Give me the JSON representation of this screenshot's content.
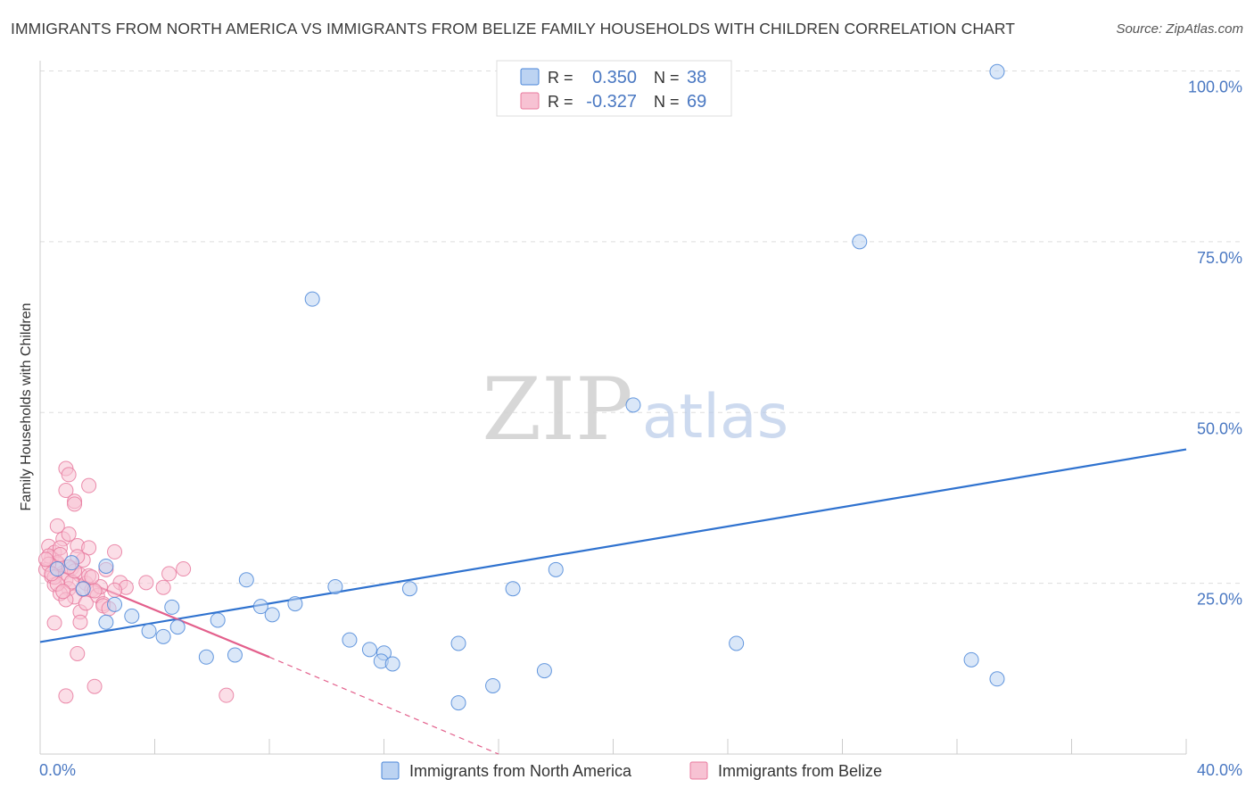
{
  "header": {
    "title": "IMMIGRANTS FROM NORTH AMERICA VS IMMIGRANTS FROM BELIZE FAMILY HOUSEHOLDS WITH CHILDREN CORRELATION CHART",
    "source": "Source: ZipAtlas.com"
  },
  "watermark": {
    "zip": "ZIP",
    "atlas": "atlas"
  },
  "colors": {
    "blue": "#4a86d8",
    "blue_fill": "#bcd3f2",
    "blue_line": "#2f72cf",
    "pink": "#e8799e",
    "pink_fill": "#f7c2d3",
    "pink_line": "#e3608c",
    "grid": "#dddddd",
    "axis_text": "#4a78c2",
    "text": "#333333"
  },
  "chart_data": {
    "type": "scatter",
    "ylabel": "Family Households with Children",
    "xlim": [
      0,
      40
    ],
    "ylim": [
      0,
      100
    ],
    "x_tick_labels": [
      "0.0%",
      "40.0%"
    ],
    "y_tick_labels": [
      {
        "value": 25,
        "label": "25.0%"
      },
      {
        "value": 50,
        "label": "50.0%"
      },
      {
        "value": 75,
        "label": "75.0%"
      },
      {
        "value": 100,
        "label": "100.0%"
      }
    ],
    "legend": [
      {
        "name": "Immigrants from North America",
        "r_label": "R =",
        "r_value": "0.350",
        "n_label": "N =",
        "n_value": "38"
      },
      {
        "name": "Immigrants from Belize",
        "r_label": "R =",
        "r_value": "-0.327",
        "n_label": "N =",
        "n_value": "69"
      }
    ],
    "series": [
      {
        "name": "Immigrants from North America",
        "points": [
          [
            33.4,
            99.9
          ],
          [
            28.6,
            75.0
          ],
          [
            9.5,
            66.6
          ],
          [
            20.7,
            51.1
          ],
          [
            18.0,
            27.0
          ],
          [
            2.3,
            27.5
          ],
          [
            1.5,
            24.2
          ],
          [
            7.2,
            25.5
          ],
          [
            10.3,
            24.5
          ],
          [
            12.9,
            24.2
          ],
          [
            16.5,
            24.2
          ],
          [
            4.6,
            21.5
          ],
          [
            2.6,
            21.9
          ],
          [
            3.2,
            20.2
          ],
          [
            7.7,
            21.6
          ],
          [
            8.1,
            20.4
          ],
          [
            8.9,
            22.0
          ],
          [
            6.2,
            19.6
          ],
          [
            2.3,
            19.3
          ],
          [
            3.8,
            18.0
          ],
          [
            4.3,
            17.2
          ],
          [
            4.8,
            18.6
          ],
          [
            10.8,
            16.7
          ],
          [
            11.5,
            15.3
          ],
          [
            12.0,
            14.8
          ],
          [
            14.6,
            16.2
          ],
          [
            24.3,
            16.2
          ],
          [
            5.8,
            14.2
          ],
          [
            6.8,
            14.5
          ],
          [
            11.9,
            13.6
          ],
          [
            12.3,
            13.2
          ],
          [
            17.6,
            12.2
          ],
          [
            32.5,
            13.8
          ],
          [
            33.4,
            11.0
          ],
          [
            15.8,
            10.0
          ],
          [
            14.6,
            7.5
          ],
          [
            1.1,
            28.0
          ],
          [
            0.6,
            27.1
          ]
        ]
      },
      {
        "name": "Immigrants from Belize",
        "points": [
          [
            0.3,
            30.4
          ],
          [
            0.5,
            29.5
          ],
          [
            0.4,
            28.7
          ],
          [
            0.6,
            27.8
          ],
          [
            0.2,
            27.0
          ],
          [
            0.8,
            26.5
          ],
          [
            0.4,
            26.0
          ],
          [
            0.9,
            25.5
          ],
          [
            0.5,
            24.8
          ],
          [
            1.0,
            24.2
          ],
          [
            0.7,
            23.5
          ],
          [
            1.2,
            23.0
          ],
          [
            0.3,
            29.0
          ],
          [
            0.6,
            28.0
          ],
          [
            1.1,
            27.2
          ],
          [
            1.4,
            26.2
          ],
          [
            1.6,
            25.0
          ],
          [
            1.8,
            24.0
          ],
          [
            2.0,
            23.2
          ],
          [
            0.8,
            31.5
          ],
          [
            1.0,
            32.2
          ],
          [
            0.6,
            33.4
          ],
          [
            1.3,
            30.5
          ],
          [
            1.7,
            30.2
          ],
          [
            0.9,
            38.6
          ],
          [
            0.9,
            41.8
          ],
          [
            1.0,
            40.9
          ],
          [
            1.2,
            37.0
          ],
          [
            1.2,
            36.6
          ],
          [
            1.7,
            39.3
          ],
          [
            2.6,
            29.6
          ],
          [
            2.3,
            27.0
          ],
          [
            2.8,
            25.1
          ],
          [
            3.0,
            24.4
          ],
          [
            4.5,
            26.4
          ],
          [
            5.0,
            27.1
          ],
          [
            4.3,
            24.4
          ],
          [
            2.2,
            22.0
          ],
          [
            2.2,
            21.7
          ],
          [
            1.4,
            20.8
          ],
          [
            0.5,
            19.2
          ],
          [
            1.4,
            19.3
          ],
          [
            1.3,
            14.7
          ],
          [
            0.9,
            8.5
          ],
          [
            1.9,
            9.9
          ],
          [
            6.5,
            8.6
          ],
          [
            2.1,
            24.5
          ],
          [
            1.5,
            28.4
          ],
          [
            0.7,
            30.2
          ],
          [
            0.3,
            27.8
          ],
          [
            0.2,
            28.5
          ],
          [
            0.5,
            25.9
          ],
          [
            0.6,
            24.9
          ],
          [
            0.9,
            22.6
          ],
          [
            1.1,
            25.2
          ],
          [
            1.5,
            24.1
          ],
          [
            1.7,
            26.1
          ],
          [
            1.9,
            23.9
          ],
          [
            1.2,
            26.8
          ],
          [
            1.3,
            28.9
          ],
          [
            0.4,
            26.4
          ],
          [
            0.8,
            23.8
          ],
          [
            2.6,
            24.0
          ],
          [
            2.4,
            21.3
          ],
          [
            1.6,
            22.1
          ],
          [
            0.7,
            29.2
          ],
          [
            1.0,
            27.4
          ],
          [
            3.7,
            25.1
          ],
          [
            1.8,
            25.9
          ]
        ]
      }
    ],
    "trendlines": [
      {
        "series": "Immigrants from North America",
        "x": [
          0,
          40
        ],
        "y": [
          16.4,
          44.6
        ]
      },
      {
        "series": "Immigrants from Belize",
        "solid_x": [
          0,
          8.0
        ],
        "solid_y": [
          28.0,
          14.2
        ],
        "dashed_x": [
          8.0,
          16.0
        ],
        "dashed_y": [
          14.2,
          0.0
        ]
      }
    ]
  }
}
